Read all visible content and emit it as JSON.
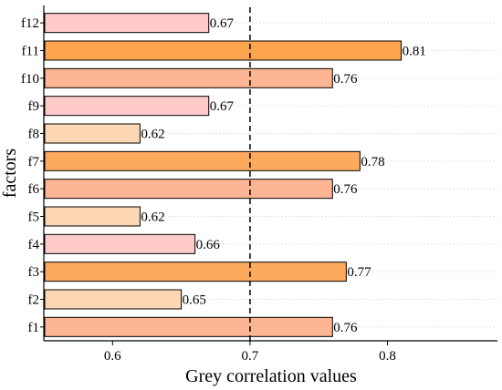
{
  "chart_data": {
    "type": "bar",
    "orientation": "horizontal",
    "categories": [
      "f1",
      "f2",
      "f3",
      "f4",
      "f5",
      "f6",
      "f7",
      "f8",
      "f9",
      "f10",
      "f11",
      "f12"
    ],
    "values": [
      0.76,
      0.65,
      0.77,
      0.66,
      0.62,
      0.76,
      0.78,
      0.62,
      0.67,
      0.76,
      0.81,
      0.67
    ],
    "bar_colors": [
      "#fdb593",
      "#fdd7b3",
      "#fdaa5f",
      "#ffcaca",
      "#fdd7b3",
      "#fdb593",
      "#fdaa5f",
      "#fdd7b3",
      "#ffcaca",
      "#fdb593",
      "#fda54e",
      "#ffcaca"
    ],
    "xlabel": "Grey correlation values",
    "ylabel": "factors",
    "xlim": [
      0.55,
      0.88
    ],
    "xticks": [
      0.6,
      0.7,
      0.8
    ],
    "xtick_labels": [
      "0.6",
      "0.7",
      "0.8"
    ],
    "reference_line": {
      "x": 0.7,
      "style": "dashed",
      "color": "#000000"
    },
    "grid": "horizontal dotted",
    "data_labels": [
      "0.76",
      "0.65",
      "0.77",
      "0.66",
      "0.62",
      "0.76",
      "0.78",
      "0.62",
      "0.67",
      "0.76",
      "0.81",
      "0.67"
    ]
  }
}
